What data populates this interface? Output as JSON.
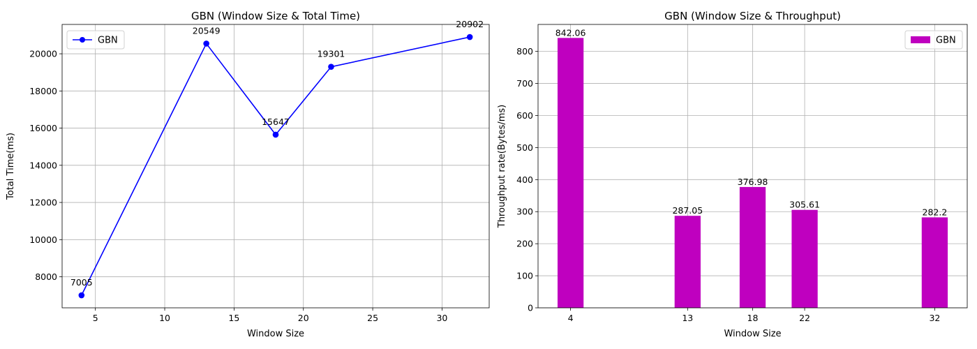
{
  "chart_data": [
    {
      "type": "line",
      "title": "GBN (Window Size & Total Time)",
      "xlabel": "Window Size",
      "ylabel": "Total Time(ms)",
      "xlim": [
        2.6,
        33.4
      ],
      "ylim": [
        6330,
        21580
      ],
      "xticks": [
        5,
        10,
        15,
        20,
        25,
        30
      ],
      "yticks": [
        8000,
        10000,
        12000,
        14000,
        16000,
        18000,
        20000
      ],
      "grid": true,
      "legend": "top-left",
      "series": [
        {
          "name": "GBN",
          "color": "#0000ff",
          "marker": "circle",
          "x": [
            4,
            13,
            18,
            22,
            32
          ],
          "y": [
            7005,
            20549,
            15647,
            19301,
            20902
          ],
          "labels": [
            "7005",
            "20549",
            "15647",
            "19301",
            "20902"
          ]
        }
      ]
    },
    {
      "type": "bar",
      "title": "GBN (Window Size & Throughput)",
      "xlabel": "Window Size",
      "ylabel": "Throughput rate(Bytes/ms)",
      "xlim": [
        1.5,
        34.5
      ],
      "ylim": [
        0,
        884.16
      ],
      "xticks": [
        4,
        13,
        18,
        22,
        32
      ],
      "yticks": [
        0,
        100,
        200,
        300,
        400,
        500,
        600,
        700,
        800
      ],
      "grid": true,
      "legend": "top-right",
      "series": [
        {
          "name": "GBN",
          "color": "#bf00bf",
          "bar_width": 2,
          "x": [
            4,
            13,
            18,
            22,
            32
          ],
          "y": [
            842.06,
            287.05,
            376.98,
            305.61,
            282.2
          ],
          "labels": [
            "842.06",
            "287.05",
            "376.98",
            "305.61",
            "282.2"
          ]
        }
      ]
    }
  ]
}
